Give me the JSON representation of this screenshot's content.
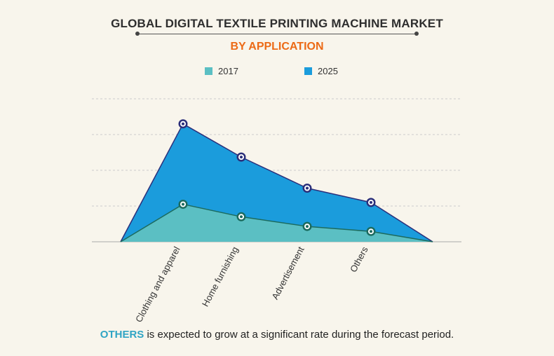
{
  "header": {
    "title": "GLOBAL DIGITAL TEXTILE PRINTING MACHINE MARKET",
    "subtitle": "BY APPLICATION"
  },
  "caption": {
    "highlight": "OTHERS",
    "text": " is expected to grow at a significant rate during the forecast period."
  },
  "colors": {
    "series_2017": "#5bbfc3",
    "series_2025": "#1b9cdc",
    "marker_2017": "#1c6b5e",
    "marker_2025": "#2b2f7a",
    "subtitle": "#ec6a16",
    "gridline": "#cccccc",
    "baseline": "#aaaaaa"
  },
  "chart_data": {
    "type": "area",
    "categories": [
      "Clothing and apparel",
      "Home furnishing",
      "Advertisement",
      "Others"
    ],
    "series": [
      {
        "name": "2017",
        "values": [
          1.05,
          0.7,
          0.43,
          0.29
        ]
      },
      {
        "name": "2025",
        "values": [
          3.3,
          2.37,
          1.5,
          1.1
        ]
      }
    ],
    "ylim": [
      0,
      4
    ],
    "grid": true,
    "legend": "top",
    "title": "GLOBAL DIGITAL TEXTILE PRINTING MACHINE MARKET",
    "subtitle": "BY APPLICATION"
  }
}
